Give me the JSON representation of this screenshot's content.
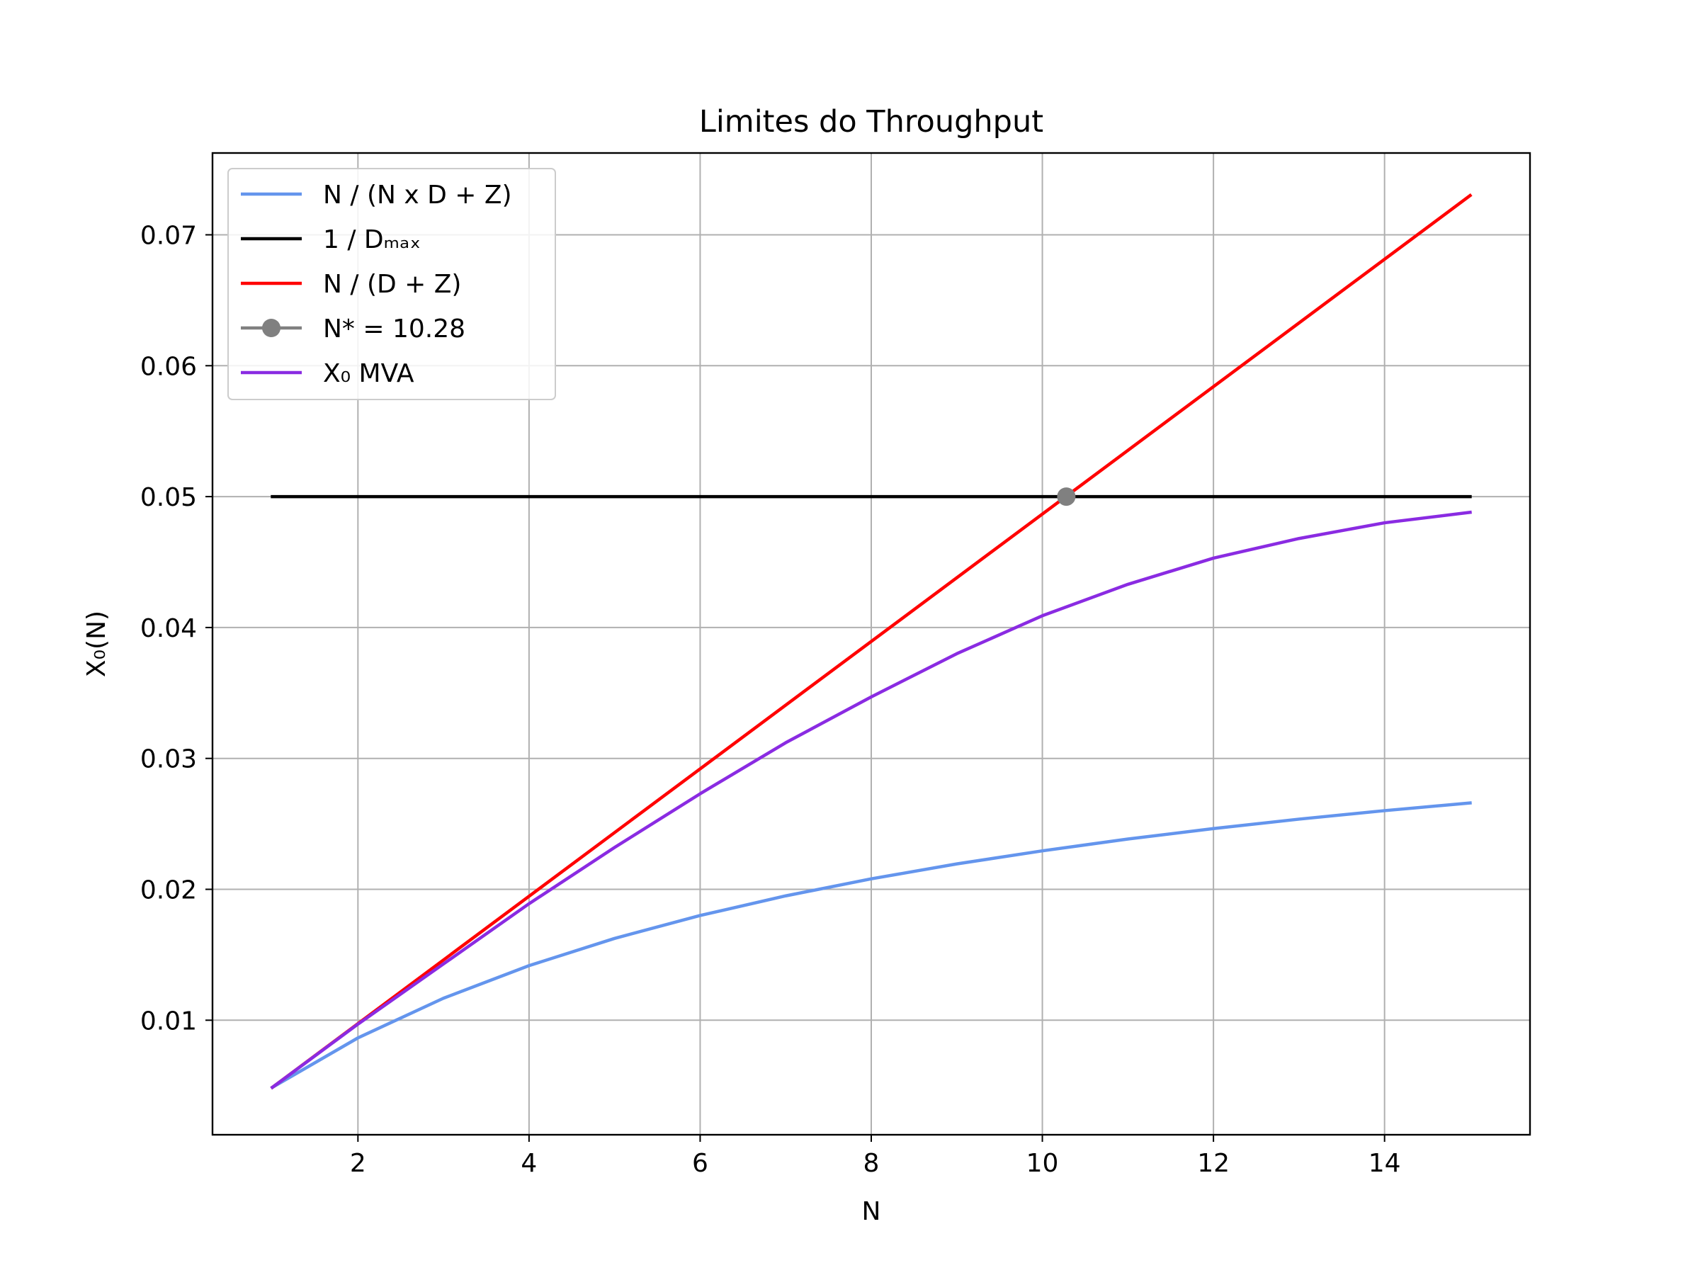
{
  "chart_data": {
    "type": "line",
    "title": "Limites do Throughput",
    "xlabel": "N",
    "ylabel": "X₀(N)",
    "xlim": [
      0.3,
      15.7
    ],
    "ylim": [
      0.00125,
      0.07625
    ],
    "xticks": [
      2,
      4,
      6,
      8,
      10,
      12,
      14
    ],
    "xtick_labels": [
      "2",
      "4",
      "6",
      "8",
      "10",
      "12",
      "14"
    ],
    "yticks": [
      0.01,
      0.02,
      0.03,
      0.04,
      0.05,
      0.06,
      0.07
    ],
    "ytick_labels": [
      "0.01",
      "0.02",
      "0.03",
      "0.04",
      "0.05",
      "0.06",
      "0.07"
    ],
    "grid": true,
    "legend_position": "upper-left",
    "series": [
      {
        "name": "N / (N x D + Z)",
        "color": "#6495ED",
        "x": [
          1,
          2,
          3,
          4,
          5,
          6,
          7,
          8,
          9,
          10,
          11,
          12,
          13,
          14,
          15
        ],
        "y": [
          0.00487,
          0.00865,
          0.01168,
          0.01417,
          0.01625,
          0.018,
          0.0195,
          0.0208,
          0.02194,
          0.02294,
          0.02384,
          0.02464,
          0.02536,
          0.02601,
          0.0266
        ]
      },
      {
        "name": "1 / Dₘₐₓ",
        "color": "#000000",
        "x": [
          1,
          15
        ],
        "y": [
          0.05,
          0.05
        ]
      },
      {
        "name": "N / (D + Z)",
        "color": "#FF0000",
        "x": [
          1,
          15
        ],
        "y": [
          0.00487,
          0.073
        ]
      },
      {
        "name": "N* = 10.28",
        "color": "#808080",
        "marker": "circle",
        "x": [
          10.28
        ],
        "y": [
          0.05
        ]
      },
      {
        "name": "X₀ MVA",
        "color": "#8A2BE2",
        "x": [
          1,
          2,
          3,
          4,
          5,
          6,
          7,
          8,
          9,
          10,
          11,
          12,
          13,
          14,
          15
        ],
        "y": [
          0.00487,
          0.0097,
          0.0143,
          0.0189,
          0.0232,
          0.0273,
          0.0312,
          0.0347,
          0.038,
          0.0409,
          0.0433,
          0.0453,
          0.0468,
          0.048,
          0.0488
        ]
      }
    ]
  }
}
